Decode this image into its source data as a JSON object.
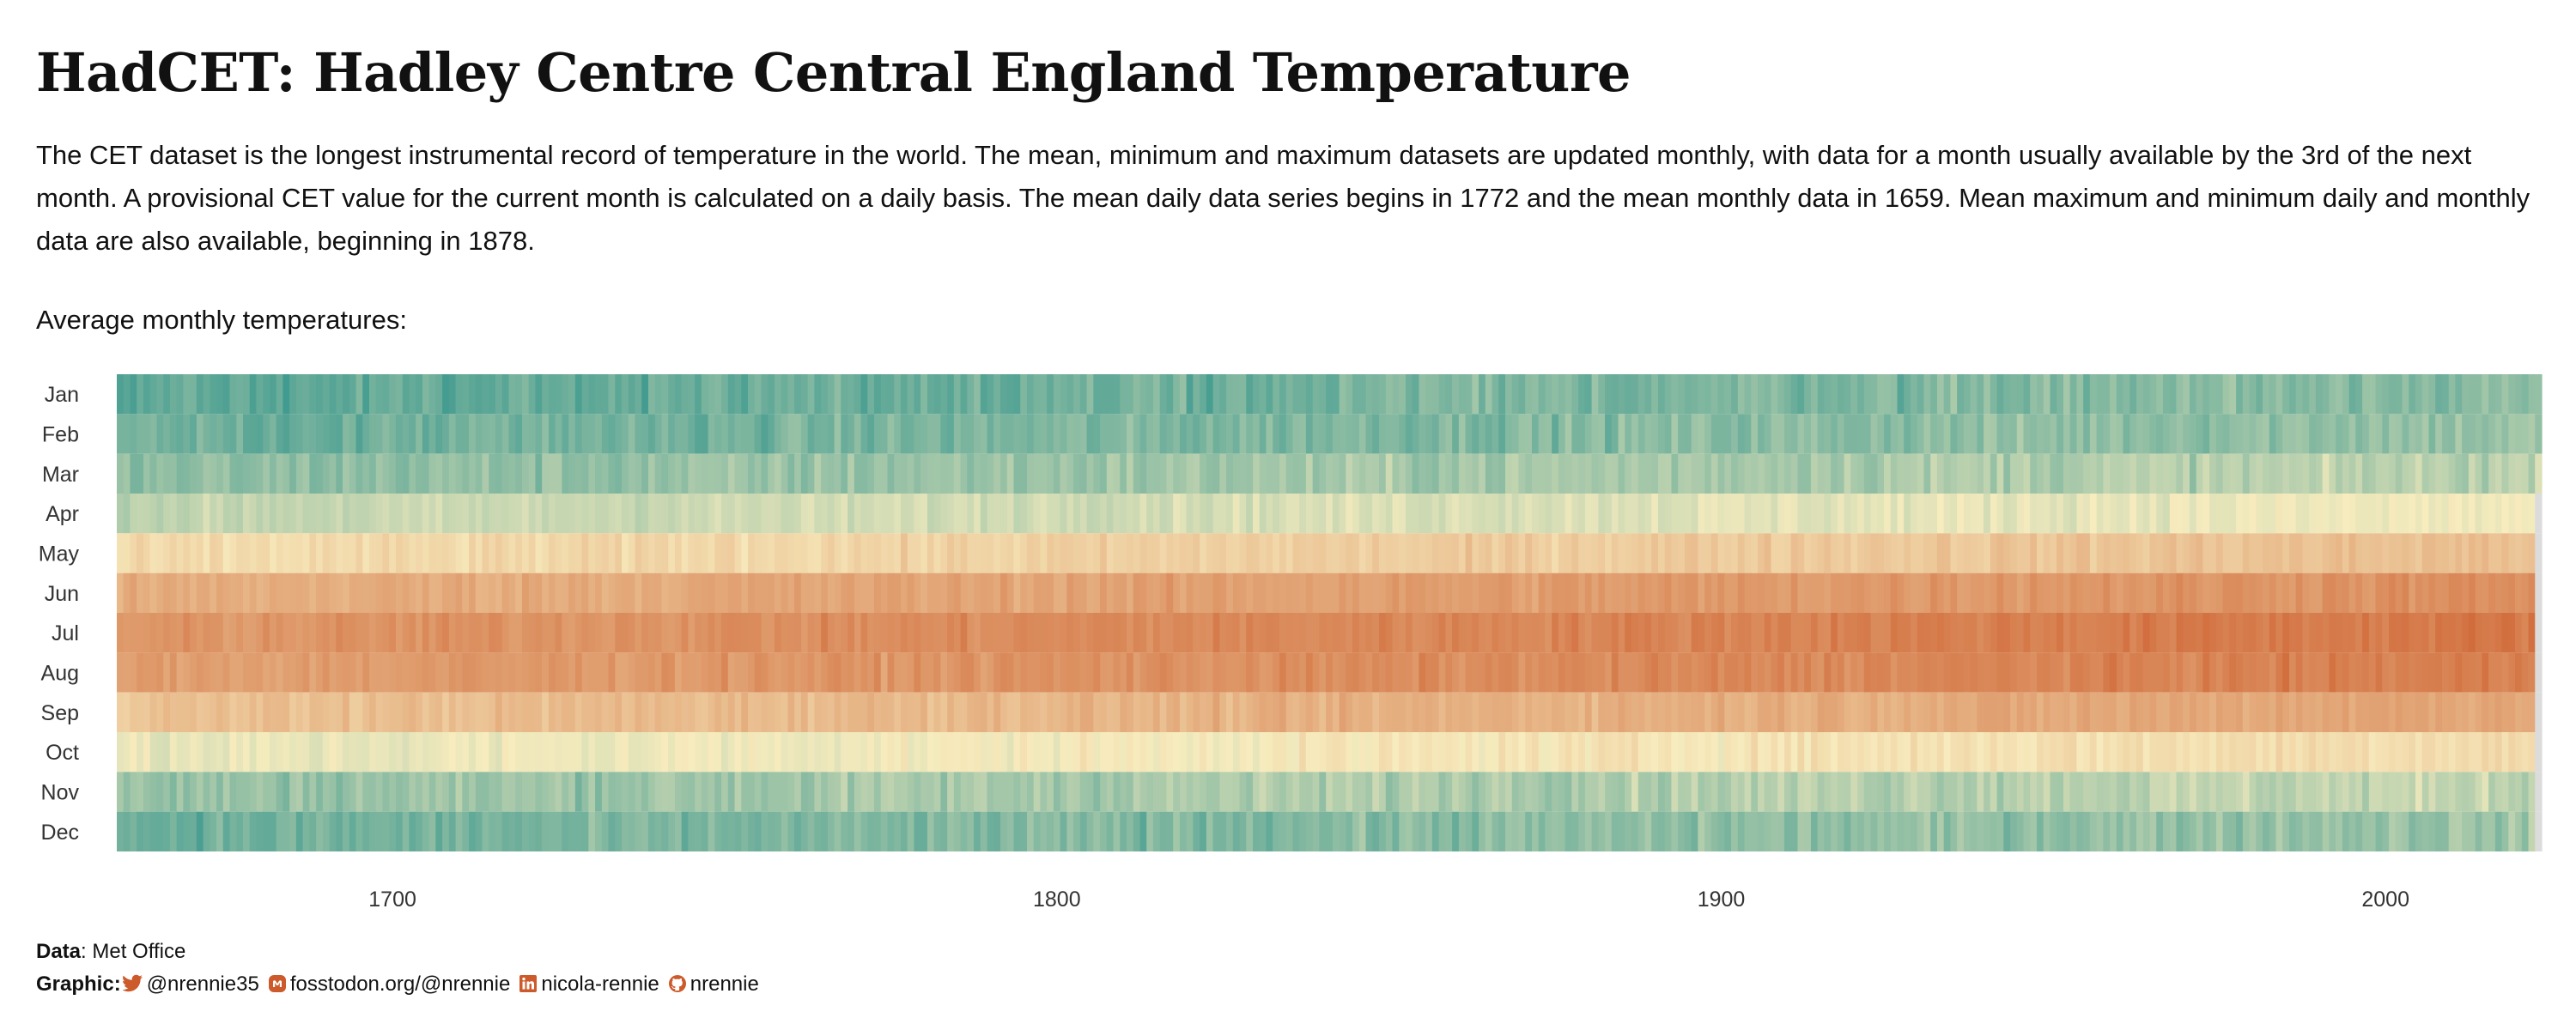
{
  "title": "HadCET: Hadley Centre Central England Temperature",
  "description": "The CET dataset is the longest instrumental record of temperature in the world. The mean, minimum and maximum datasets are updated monthly, with data for a month usually available by the 3rd of the next month. A provisional CET value for the current month is calculated on a daily basis. The mean daily data series begins in 1772 and the mean monthly data in 1659. Mean maximum and minimum daily and monthly data are also available, beginning in 1878.",
  "subtitle": "Average monthly temperatures:",
  "chart_data": {
    "type": "heatmap",
    "x_range": [
      1659,
      2023
    ],
    "x_ticks": [
      "1700",
      "1800",
      "1900",
      "2000"
    ],
    "months": [
      "Jan",
      "Feb",
      "Mar",
      "Apr",
      "May",
      "Jun",
      "Jul",
      "Aug",
      "Sep",
      "Oct",
      "Nov",
      "Dec"
    ],
    "monthly_mean_c": [
      3.5,
      4.0,
      5.5,
      8.0,
      11.4,
      14.6,
      16.2,
      15.7,
      13.3,
      9.6,
      6.0,
      4.2
    ],
    "color_low": "#1c8a86",
    "color_mid": "#f7ecbe",
    "color_high": "#cc5a2a",
    "grid": false
  },
  "footer": {
    "data_label": "Data",
    "data_value": ": Met Office",
    "graphic_label": "Graphic:",
    "twitter": "@nrennie35",
    "mastodon": "fosstodon.org/@nrennie",
    "linkedin": "nicola-rennie",
    "github": "nrennie",
    "icon_color": "#cc5a2a"
  }
}
